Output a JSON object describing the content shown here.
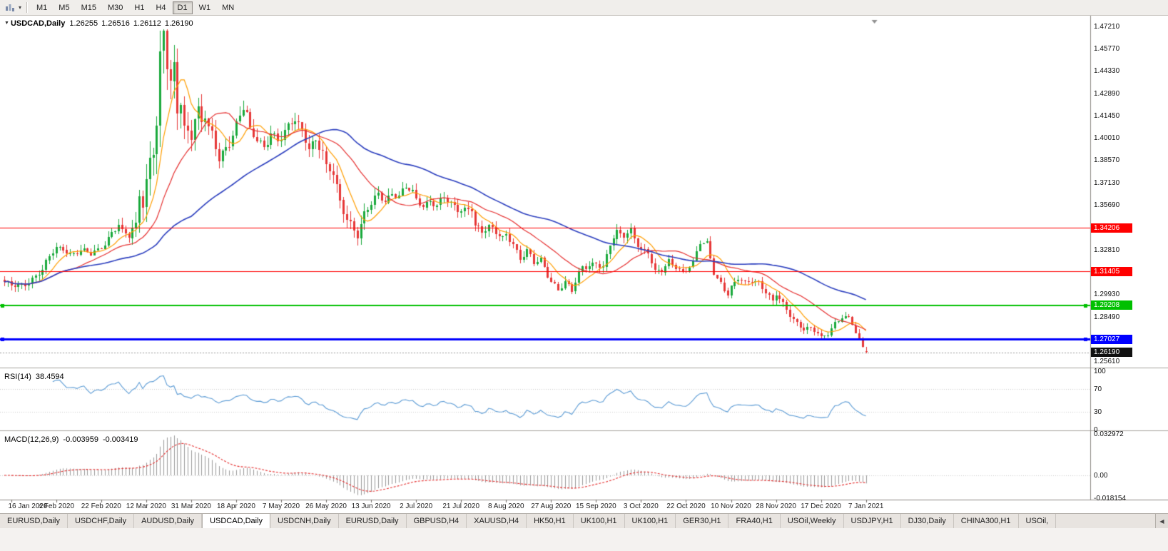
{
  "icons": {
    "chart_menu_caret": "▼",
    "toolbar_dropdown": "▾",
    "tab_scroll_left": "◀"
  },
  "toolbar": {
    "timeframes": [
      "M1",
      "M5",
      "M15",
      "M30",
      "H1",
      "H4",
      "D1",
      "W1",
      "MN"
    ],
    "active_timeframe": "D1"
  },
  "chart": {
    "header": {
      "symbol": "USDCAD,Daily",
      "open": "1.26255",
      "high": "1.26516",
      "low": "1.26112",
      "close": "1.26190"
    },
    "rsi_header": {
      "name": "RSI(14)",
      "value": "38.4594"
    },
    "macd_header": {
      "name": "MACD(12,26,9)",
      "value1": "-0.003959",
      "value2": "-0.003419"
    }
  },
  "chart_data": {
    "type": "candlestick",
    "symbol": "USDCAD",
    "timeframe": "Daily",
    "num_candles": 250,
    "last_candle": {
      "open": 1.26255,
      "high": 1.26516,
      "low": 1.26112,
      "close": 1.2619
    },
    "price_scale": {
      "min": 1.2525,
      "max": 1.477
    },
    "up_color": "#1aa93c",
    "down_color": "#e63737",
    "x_labels": [
      "16 Jan 2020",
      "4 Feb 2020",
      "22 Feb 2020",
      "12 Mar 2020",
      "31 Mar 2020",
      "18 Apr 2020",
      "7 May 2020",
      "26 May 2020",
      "13 Jun 2020",
      "2 Jul 2020",
      "21 Jul 2020",
      "8 Aug 2020",
      "27 Aug 2020",
      "15 Sep 2020",
      "3 Oct 2020",
      "22 Oct 2020",
      "10 Nov 2020",
      "28 Nov 2020",
      "17 Dec 2020",
      "7 Jan 2021"
    ],
    "y_axis_labels_main": [
      {
        "text": "1.47210",
        "price": 1.4721
      },
      {
        "text": "1.45770",
        "price": 1.4577
      },
      {
        "text": "1.44330",
        "price": 1.4433
      },
      {
        "text": "1.42890",
        "price": 1.4289
      },
      {
        "text": "1.41450",
        "price": 1.4145
      },
      {
        "text": "1.40010",
        "price": 1.4001
      },
      {
        "text": "1.38570",
        "price": 1.3857
      },
      {
        "text": "1.37130",
        "price": 1.3713
      },
      {
        "text": "1.35690",
        "price": 1.3569
      },
      {
        "text": "1.32810",
        "price": 1.3281
      },
      {
        "text": "1.29930",
        "price": 1.2993
      },
      {
        "text": "1.28490",
        "price": 1.2849
      },
      {
        "text": "1.25610",
        "price": 1.2561
      }
    ],
    "h_lines": [
      {
        "price": 1.34206,
        "label": "1.34206",
        "color": "#ff0000",
        "width": 1,
        "handles": false
      },
      {
        "price": 1.31405,
        "label": "1.31405",
        "color": "#ff0000",
        "width": 1,
        "handles": false
      },
      {
        "price": 1.29208,
        "label": "1.29208",
        "color": "#00c000",
        "width": 2,
        "handles": true
      },
      {
        "price": 1.27027,
        "label": "1.27027",
        "color": "#0000ff",
        "width": 3,
        "handles": true
      }
    ],
    "current_price": {
      "price": 1.2619,
      "label": "1.26190",
      "color": "#111111"
    },
    "moving_averages": [
      {
        "period": 8,
        "color": "#ff9e00",
        "width": 1.2
      },
      {
        "period": 21,
        "color": "#e62e2e",
        "width": 1.2
      },
      {
        "period": 55,
        "color": "#2c3fbf",
        "width": 1.6
      }
    ],
    "close_keypoints": [
      [
        0,
        1.306
      ],
      [
        2,
        1.3045
      ],
      [
        5,
        1.306
      ],
      [
        8,
        1.3095
      ],
      [
        11,
        1.314
      ],
      [
        13,
        1.323
      ],
      [
        15,
        1.329
      ],
      [
        17,
        1.33
      ],
      [
        19,
        1.3255
      ],
      [
        22,
        1.327
      ],
      [
        25,
        1.3245
      ],
      [
        27,
        1.328
      ],
      [
        29,
        1.333
      ],
      [
        31,
        1.34
      ],
      [
        33,
        1.344
      ],
      [
        34,
        1.338
      ],
      [
        36,
        1.3355
      ],
      [
        38,
        1.342
      ],
      [
        39,
        1.366
      ],
      [
        40,
        1.361
      ],
      [
        41,
        1.374
      ],
      [
        42,
        1.39
      ],
      [
        43,
        1.398
      ],
      [
        44,
        1.41
      ],
      [
        45,
        1.448
      ],
      [
        46,
        1.465
      ],
      [
        47,
        1.444
      ],
      [
        48,
        1.43
      ],
      [
        49,
        1.442
      ],
      [
        50,
        1.418
      ],
      [
        51,
        1.426
      ],
      [
        52,
        1.408
      ],
      [
        54,
        1.406
      ],
      [
        55,
        1.415
      ],
      [
        56,
        1.417
      ],
      [
        57,
        1.409
      ],
      [
        58,
        1.413
      ],
      [
        59,
        1.403
      ],
      [
        60,
        1.399
      ],
      [
        62,
        1.387
      ],
      [
        63,
        1.391
      ],
      [
        65,
        1.4
      ],
      [
        67,
        1.409
      ],
      [
        69,
        1.419
      ],
      [
        70,
        1.413
      ],
      [
        71,
        1.401
      ],
      [
        73,
        1.399
      ],
      [
        75,
        1.3945
      ],
      [
        77,
        1.406
      ],
      [
        79,
        1.3985
      ],
      [
        82,
        1.405
      ],
      [
        84,
        1.411
      ],
      [
        86,
        1.405
      ],
      [
        88,
        1.396
      ],
      [
        90,
        1.3995
      ],
      [
        92,
        1.39
      ],
      [
        93,
        1.379
      ],
      [
        95,
        1.376
      ],
      [
        97,
        1.3585
      ],
      [
        99,
        1.3505
      ],
      [
        101,
        1.3425
      ],
      [
        102,
        1.339
      ],
      [
        104,
        1.349
      ],
      [
        106,
        1.3565
      ],
      [
        108,
        1.3625
      ],
      [
        110,
        1.3605
      ],
      [
        112,
        1.3655
      ],
      [
        114,
        1.363
      ],
      [
        116,
        1.3675
      ],
      [
        118,
        1.364
      ],
      [
        119,
        1.359
      ],
      [
        121,
        1.3565
      ],
      [
        123,
        1.3605
      ],
      [
        125,
        1.3575
      ],
      [
        127,
        1.3615
      ],
      [
        129,
        1.356
      ],
      [
        131,
        1.3525
      ],
      [
        133,
        1.3545
      ],
      [
        135,
        1.356
      ],
      [
        136,
        1.345
      ],
      [
        138,
        1.3395
      ],
      [
        140,
        1.3415
      ],
      [
        142,
        1.338
      ],
      [
        144,
        1.3355
      ],
      [
        145,
        1.3385
      ],
      [
        147,
        1.333
      ],
      [
        149,
        1.3225
      ],
      [
        151,
        1.3265
      ],
      [
        153,
        1.3185
      ],
      [
        155,
        1.321
      ],
      [
        157,
        1.3125
      ],
      [
        158,
        1.3085
      ],
      [
        160,
        1.3035
      ],
      [
        162,
        1.3065
      ],
      [
        164,
        1.3005
      ],
      [
        165,
        1.306
      ],
      [
        167,
        1.3165
      ],
      [
        169,
        1.3185
      ],
      [
        171,
        1.3205
      ],
      [
        173,
        1.3165
      ],
      [
        175,
        1.3305
      ],
      [
        177,
        1.3385
      ],
      [
        179,
        1.337
      ],
      [
        181,
        1.3415
      ],
      [
        183,
        1.3325
      ],
      [
        184,
        1.3285
      ],
      [
        186,
        1.3255
      ],
      [
        188,
        1.3125
      ],
      [
        190,
        1.3145
      ],
      [
        192,
        1.3215
      ],
      [
        194,
        1.3185
      ],
      [
        196,
        1.3135
      ],
      [
        197,
        1.3145
      ],
      [
        199,
        1.3185
      ],
      [
        201,
        1.332
      ],
      [
        203,
        1.3325
      ],
      [
        205,
        1.3145
      ],
      [
        207,
        1.3065
      ],
      [
        209,
        1.2985
      ],
      [
        210,
        1.3025
      ],
      [
        212,
        1.3085
      ],
      [
        214,
        1.3065
      ],
      [
        216,
        1.3095
      ],
      [
        218,
        1.3075
      ],
      [
        220,
        1.3005
      ],
      [
        222,
        1.2935
      ],
      [
        223,
        1.2985
      ],
      [
        225,
        1.2925
      ],
      [
        227,
        1.2865
      ],
      [
        229,
        1.2815
      ],
      [
        231,
        1.2775
      ],
      [
        233,
        1.2765
      ],
      [
        235,
        1.2735
      ],
      [
        236,
        1.2705
      ],
      [
        238,
        1.2745
      ],
      [
        240,
        1.2815
      ],
      [
        242,
        1.2855
      ],
      [
        244,
        1.2835
      ],
      [
        245,
        1.2795
      ],
      [
        246,
        1.2735
      ],
      [
        247,
        1.2685
      ],
      [
        248,
        1.2645
      ],
      [
        249,
        1.2619
      ]
    ],
    "volatility_keypoints": [
      [
        0,
        0.0045
      ],
      [
        30,
        0.005
      ],
      [
        36,
        0.007
      ],
      [
        40,
        0.014
      ],
      [
        44,
        0.019
      ],
      [
        46,
        0.021
      ],
      [
        48,
        0.017
      ],
      [
        52,
        0.013
      ],
      [
        58,
        0.011
      ],
      [
        64,
        0.01
      ],
      [
        70,
        0.0095
      ],
      [
        80,
        0.008
      ],
      [
        90,
        0.0075
      ],
      [
        96,
        0.0085
      ],
      [
        102,
        0.0085
      ],
      [
        110,
        0.0065
      ],
      [
        120,
        0.0055
      ],
      [
        135,
        0.0055
      ],
      [
        150,
        0.005
      ],
      [
        165,
        0.005
      ],
      [
        180,
        0.0048
      ],
      [
        195,
        0.0045
      ],
      [
        210,
        0.0045
      ],
      [
        225,
        0.0042
      ],
      [
        240,
        0.004
      ],
      [
        249,
        0.0038
      ]
    ],
    "rsi": {
      "period": 14,
      "color": "#5b9bd5",
      "last_value": 38.4594,
      "levels": [
        {
          "text": "100",
          "value": 100
        },
        {
          "text": "70",
          "value": 70
        },
        {
          "text": "30",
          "value": 30
        },
        {
          "text": "0",
          "value": 0
        }
      ]
    },
    "macd": {
      "fast": 12,
      "slow": 26,
      "signal": 9,
      "hist_color": "#9a9a9a",
      "signal_color": "#e62e2e",
      "scale_max": 0.032972,
      "scale_min": -0.018154,
      "scale_labels": [
        {
          "text": "0.032972",
          "value": 0.032972
        },
        {
          "text": "0.00",
          "value": 0
        },
        {
          "text": "-0.018154",
          "value": -0.018154
        }
      ]
    }
  },
  "tabs": {
    "active_index": 3,
    "items": [
      {
        "label": "EURUSD,Daily"
      },
      {
        "label": "USDCHF,Daily"
      },
      {
        "label": "AUDUSD,Daily"
      },
      {
        "label": "USDCAD,Daily"
      },
      {
        "label": "USDCNH,Daily"
      },
      {
        "label": "EURUSD,Daily"
      },
      {
        "label": "GBPUSD,H4"
      },
      {
        "label": "XAUUSD,H4"
      },
      {
        "label": "HK50,H1"
      },
      {
        "label": "UK100,H1"
      },
      {
        "label": "UK100,H1"
      },
      {
        "label": "GER30,H1"
      },
      {
        "label": "FRA40,H1"
      },
      {
        "label": "USOil,Weekly"
      },
      {
        "label": "USDJPY,H1"
      },
      {
        "label": "DJ30,Daily"
      },
      {
        "label": "CHINA300,H1"
      },
      {
        "label": "USOil,"
      }
    ]
  }
}
